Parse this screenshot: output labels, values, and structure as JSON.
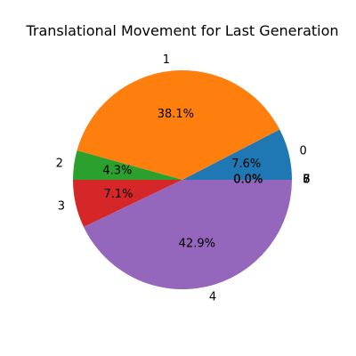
{
  "chart_data": {
    "type": "pie",
    "title": "Translational Movement for Last Generation",
    "start_angle": 0,
    "direction": "counterclockwise",
    "slices": [
      {
        "label": "0",
        "value": 7.6,
        "pct": "7.6%",
        "color": "#1f77b4"
      },
      {
        "label": "1",
        "value": 38.1,
        "pct": "38.1%",
        "color": "#ff7f0e"
      },
      {
        "label": "2",
        "value": 4.3,
        "pct": "4.3%",
        "color": "#2ca02c"
      },
      {
        "label": "3",
        "value": 7.1,
        "pct": "7.1%",
        "color": "#d62728"
      },
      {
        "label": "4",
        "value": 42.9,
        "pct": "42.9%",
        "color": "#9467bd"
      },
      {
        "label": "5",
        "value": 0.0,
        "pct": "0.0%",
        "color": "#8c564b"
      },
      {
        "label": "6",
        "value": 0.0,
        "pct": "0.0%",
        "color": "#e377c2"
      },
      {
        "label": "7",
        "value": 0.0,
        "pct": "0.0%",
        "color": "#7f7f7f"
      },
      {
        "label": "8",
        "value": 0.0,
        "pct": "0.0%",
        "color": "#bcbd22"
      }
    ]
  }
}
